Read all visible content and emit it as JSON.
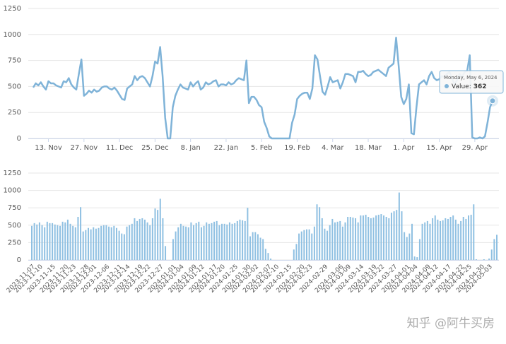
{
  "chart_data": [
    {
      "type": "line",
      "x": [
        "2023-11-07",
        "2023-11-08",
        "2023-11-09",
        "2023-11-10",
        "2023-11-11",
        "2023-11-12",
        "2023-11-13",
        "2023-11-14",
        "2023-11-15",
        "2023-11-16",
        "2023-11-17",
        "2023-11-18",
        "2023-11-19",
        "2023-11-20",
        "2023-11-21",
        "2023-11-22",
        "2023-11-23",
        "2023-11-24",
        "2023-11-25",
        "2023-11-26",
        "2023-11-27",
        "2023-11-28",
        "2023-11-29",
        "2023-11-30",
        "2023-12-01",
        "2023-12-02",
        "2023-12-03",
        "2023-12-04",
        "2023-12-05",
        "2023-12-06",
        "2023-12-07",
        "2023-12-08",
        "2023-12-09",
        "2023-12-10",
        "2023-12-11",
        "2023-12-12",
        "2023-12-13",
        "2023-12-14",
        "2023-12-15",
        "2023-12-16",
        "2023-12-17",
        "2023-12-18",
        "2023-12-19",
        "2023-12-20",
        "2023-12-21",
        "2023-12-22",
        "2023-12-23",
        "2023-12-24",
        "2023-12-25",
        "2023-12-26",
        "2023-12-27",
        "2023-12-28",
        "2023-12-29",
        "2023-12-30",
        "2023-12-31",
        "2024-01-01",
        "2024-01-02",
        "2024-01-03",
        "2024-01-04",
        "2024-01-05",
        "2024-01-06",
        "2024-01-07",
        "2024-01-08",
        "2024-01-09",
        "2024-01-10",
        "2024-01-11",
        "2024-01-12",
        "2024-01-13",
        "2024-01-14",
        "2024-01-15",
        "2024-01-16",
        "2024-01-17",
        "2024-01-18",
        "2024-01-19",
        "2024-01-20",
        "2024-01-21",
        "2024-01-22",
        "2024-01-23",
        "2024-01-24",
        "2024-01-25",
        "2024-01-26",
        "2024-01-27",
        "2024-01-28",
        "2024-01-29",
        "2024-01-30",
        "2024-01-31",
        "2024-02-01",
        "2024-02-02",
        "2024-02-03",
        "2024-02-04",
        "2024-02-05",
        "2024-02-06",
        "2024-02-07",
        "2024-02-08",
        "2024-02-09",
        "2024-02-10",
        "2024-02-11",
        "2024-02-12",
        "2024-02-13",
        "2024-02-14",
        "2024-02-15",
        "2024-02-16",
        "2024-02-17",
        "2024-02-18",
        "2024-02-19",
        "2024-02-20",
        "2024-02-21",
        "2024-02-22",
        "2024-02-23",
        "2024-02-24",
        "2024-02-25",
        "2024-02-26",
        "2024-02-27",
        "2024-02-28",
        "2024-02-29",
        "2024-03-01",
        "2024-03-02",
        "2024-03-03",
        "2024-03-04",
        "2024-03-05",
        "2024-03-06",
        "2024-03-07",
        "2024-03-08",
        "2024-03-09",
        "2024-03-10",
        "2024-03-11",
        "2024-03-12",
        "2024-03-13",
        "2024-03-14",
        "2024-03-15",
        "2024-03-16",
        "2024-03-17",
        "2024-03-18",
        "2024-03-19",
        "2024-03-20",
        "2024-03-21",
        "2024-03-22",
        "2024-03-23",
        "2024-03-24",
        "2024-03-25",
        "2024-03-26",
        "2024-03-27",
        "2024-03-28",
        "2024-03-29",
        "2024-03-30",
        "2024-03-31",
        "2024-04-01",
        "2024-04-02",
        "2024-04-03",
        "2024-04-04",
        "2024-04-05",
        "2024-04-06",
        "2024-04-07",
        "2024-04-08",
        "2024-04-09",
        "2024-04-10",
        "2024-04-11",
        "2024-04-12",
        "2024-04-13",
        "2024-04-14",
        "2024-04-15",
        "2024-04-16",
        "2024-04-17",
        "2024-04-18",
        "2024-04-19",
        "2024-04-20",
        "2024-04-21",
        "2024-04-22",
        "2024-04-23",
        "2024-04-24",
        "2024-04-25",
        "2024-04-26",
        "2024-04-27",
        "2024-04-28",
        "2024-04-29",
        "2024-04-30",
        "2024-05-01",
        "2024-05-02",
        "2024-05-03",
        "2024-05-04",
        "2024-05-05",
        "2024-05-06"
      ],
      "series": [
        {
          "name": "Value",
          "color": "#7fb3d8",
          "values": [
            490,
            530,
            510,
            540,
            500,
            470,
            550,
            530,
            530,
            510,
            500,
            490,
            550,
            540,
            580,
            520,
            490,
            470,
            620,
            760,
            410,
            430,
            460,
            440,
            470,
            450,
            460,
            490,
            500,
            500,
            480,
            470,
            490,
            460,
            420,
            380,
            370,
            480,
            500,
            520,
            600,
            560,
            590,
            600,
            580,
            540,
            500,
            600,
            740,
            720,
            880,
            600,
            200,
            0,
            0,
            300,
            410,
            470,
            520,
            490,
            480,
            470,
            540,
            500,
            530,
            550,
            470,
            490,
            540,
            520,
            530,
            550,
            560,
            500,
            520,
            520,
            510,
            540,
            520,
            530,
            560,
            580,
            570,
            560,
            750,
            340,
            400,
            400,
            370,
            320,
            300,
            160,
            100,
            20,
            0,
            0,
            0,
            0,
            0,
            0,
            0,
            0,
            150,
            230,
            380,
            410,
            430,
            440,
            440,
            380,
            480,
            800,
            760,
            600,
            450,
            420,
            500,
            590,
            540,
            550,
            560,
            480,
            540,
            620,
            620,
            610,
            600,
            540,
            640,
            640,
            650,
            620,
            600,
            610,
            640,
            650,
            660,
            640,
            620,
            600,
            680,
            700,
            720,
            970,
            700,
            400,
            330,
            380,
            520,
            50,
            40,
            300,
            520,
            540,
            560,
            520,
            600,
            640,
            580,
            560,
            570,
            600,
            590,
            620,
            640,
            580,
            520,
            560,
            620,
            590,
            640,
            650,
            800,
            10,
            0,
            0,
            10,
            0,
            20,
            150,
            300,
            362
          ]
        }
      ],
      "ylim": [
        0,
        1250
      ],
      "yticks": [
        0,
        250,
        500,
        750,
        1000,
        1250
      ],
      "grid": true,
      "xticks": [
        {
          "value": "2023-11-13",
          "label": "13. Nov"
        },
        {
          "value": "2023-11-27",
          "label": "27. Nov"
        },
        {
          "value": "2023-12-11",
          "label": "11. Dec"
        },
        {
          "value": "2023-12-25",
          "label": "25. Dec"
        },
        {
          "value": "2024-01-08",
          "label": "8. Jan"
        },
        {
          "value": "2024-01-22",
          "label": "22. Jan"
        },
        {
          "value": "2024-02-05",
          "label": "5. Feb"
        },
        {
          "value": "2024-02-19",
          "label": "19. Feb"
        },
        {
          "value": "2024-03-04",
          "label": "4. Mar"
        },
        {
          "value": "2024-03-18",
          "label": "18. Mar"
        },
        {
          "value": "2024-04-01",
          "label": "1. Apr"
        },
        {
          "value": "2024-04-15",
          "label": "15. Apr"
        },
        {
          "value": "2024-04-29",
          "label": "29. Apr"
        }
      ],
      "tooltip": {
        "title": "Monday, May 6, 2024",
        "label": "Value:",
        "value": 362
      }
    },
    {
      "type": "bar",
      "x": [
        "2023-11-07",
        "2023-11-08",
        "2023-11-09",
        "2023-11-10",
        "2023-11-11",
        "2023-11-12",
        "2023-11-13",
        "2023-11-14",
        "2023-11-15",
        "2023-11-16",
        "2023-11-17",
        "2023-11-18",
        "2023-11-19",
        "2023-11-20",
        "2023-11-21",
        "2023-11-22",
        "2023-11-23",
        "2023-11-24",
        "2023-11-25",
        "2023-11-26",
        "2023-11-27",
        "2023-11-28",
        "2023-11-29",
        "2023-11-30",
        "2023-12-01",
        "2023-12-02",
        "2023-12-03",
        "2023-12-04",
        "2023-12-05",
        "2023-12-06",
        "2023-12-07",
        "2023-12-08",
        "2023-12-09",
        "2023-12-10",
        "2023-12-11",
        "2023-12-12",
        "2023-12-13",
        "2023-12-14",
        "2023-12-15",
        "2023-12-16",
        "2023-12-17",
        "2023-12-18",
        "2023-12-19",
        "2023-12-20",
        "2023-12-21",
        "2023-12-22",
        "2023-12-23",
        "2023-12-24",
        "2023-12-25",
        "2023-12-26",
        "2023-12-27",
        "2023-12-28",
        "2023-12-29",
        "2023-12-30",
        "2023-12-31",
        "2024-01-01",
        "2024-01-02",
        "2024-01-03",
        "2024-01-04",
        "2024-01-05",
        "2024-01-06",
        "2024-01-07",
        "2024-01-08",
        "2024-01-09",
        "2024-01-10",
        "2024-01-11",
        "2024-01-12",
        "2024-01-13",
        "2024-01-14",
        "2024-01-15",
        "2024-01-16",
        "2024-01-17",
        "2024-01-18",
        "2024-01-19",
        "2024-01-20",
        "2024-01-21",
        "2024-01-22",
        "2024-01-23",
        "2024-01-24",
        "2024-01-25",
        "2024-01-26",
        "2024-01-27",
        "2024-01-28",
        "2024-01-29",
        "2024-01-30",
        "2024-01-31",
        "2024-02-01",
        "2024-02-02",
        "2024-02-03",
        "2024-02-04",
        "2024-02-05",
        "2024-02-06",
        "2024-02-07",
        "2024-02-08",
        "2024-02-09",
        "2024-02-10",
        "2024-02-11",
        "2024-02-12",
        "2024-02-13",
        "2024-02-14",
        "2024-02-15",
        "2024-02-16",
        "2024-02-17",
        "2024-02-18",
        "2024-02-19",
        "2024-02-20",
        "2024-02-21",
        "2024-02-22",
        "2024-02-23",
        "2024-02-24",
        "2024-02-25",
        "2024-02-26",
        "2024-02-27",
        "2024-02-28",
        "2024-02-29",
        "2024-03-01",
        "2024-03-02",
        "2024-03-03",
        "2024-03-04",
        "2024-03-05",
        "2024-03-06",
        "2024-03-07",
        "2024-03-08",
        "2024-03-09",
        "2024-03-10",
        "2024-03-11",
        "2024-03-12",
        "2024-03-13",
        "2024-03-14",
        "2024-03-15",
        "2024-03-16",
        "2024-03-17",
        "2024-03-18",
        "2024-03-19",
        "2024-03-20",
        "2024-03-21",
        "2024-03-22",
        "2024-03-23",
        "2024-03-24",
        "2024-03-25",
        "2024-03-26",
        "2024-03-27",
        "2024-03-28",
        "2024-03-29",
        "2024-03-30",
        "2024-03-31",
        "2024-04-01",
        "2024-04-02",
        "2024-04-03",
        "2024-04-04",
        "2024-04-05",
        "2024-04-06",
        "2024-04-07",
        "2024-04-08",
        "2024-04-09",
        "2024-04-10",
        "2024-04-11",
        "2024-04-12",
        "2024-04-13",
        "2024-04-14",
        "2024-04-15",
        "2024-04-16",
        "2024-04-17",
        "2024-04-18",
        "2024-04-19",
        "2024-04-20",
        "2024-04-21",
        "2024-04-22",
        "2024-04-23",
        "2024-04-24",
        "2024-04-25",
        "2024-04-26",
        "2024-04-27",
        "2024-04-28",
        "2024-04-29",
        "2024-04-30",
        "2024-05-01",
        "2024-05-02",
        "2024-05-03",
        "2024-05-04",
        "2024-05-05",
        "2024-05-06"
      ],
      "color": "#8fc0e2",
      "values": [
        490,
        530,
        510,
        540,
        500,
        470,
        550,
        530,
        530,
        510,
        500,
        490,
        550,
        540,
        580,
        520,
        490,
        470,
        620,
        760,
        410,
        430,
        460,
        440,
        470,
        450,
        460,
        490,
        500,
        500,
        480,
        470,
        490,
        460,
        420,
        380,
        370,
        480,
        500,
        520,
        600,
        560,
        590,
        600,
        580,
        540,
        500,
        600,
        740,
        720,
        880,
        600,
        200,
        0,
        0,
        300,
        410,
        470,
        520,
        490,
        480,
        470,
        540,
        500,
        530,
        550,
        470,
        490,
        540,
        520,
        530,
        550,
        560,
        500,
        520,
        520,
        510,
        540,
        520,
        530,
        560,
        580,
        570,
        560,
        750,
        340,
        400,
        400,
        370,
        320,
        300,
        160,
        100,
        20,
        0,
        0,
        0,
        0,
        0,
        0,
        0,
        0,
        150,
        230,
        380,
        410,
        430,
        440,
        440,
        380,
        480,
        800,
        760,
        600,
        450,
        420,
        500,
        590,
        540,
        550,
        560,
        480,
        540,
        620,
        620,
        610,
        600,
        540,
        640,
        640,
        650,
        620,
        600,
        610,
        640,
        650,
        660,
        640,
        620,
        600,
        680,
        700,
        720,
        970,
        700,
        400,
        330,
        380,
        520,
        50,
        40,
        300,
        520,
        540,
        560,
        520,
        600,
        640,
        580,
        560,
        570,
        600,
        590,
        620,
        640,
        580,
        520,
        560,
        620,
        590,
        640,
        650,
        800,
        10,
        0,
        0,
        10,
        0,
        20,
        150,
        300,
        362
      ],
      "ylim": [
        0,
        1250
      ],
      "yticks": [
        0,
        250,
        500,
        750,
        1000,
        1250
      ],
      "grid": true,
      "xticks": [
        "2023-11-07",
        "2023-11-10",
        "2023-11-15",
        "2023-11-20",
        "2023-11-23",
        "2023-11-28",
        "2023-12-01",
        "2023-12-06",
        "2023-12-11",
        "2023-12-14",
        "2023-12-19",
        "2023-12-22",
        "2023-12-27",
        "2024-01-01",
        "2024-01-04",
        "2024-01-09",
        "2024-01-12",
        "2024-01-17",
        "2024-01-20",
        "2024-01-25",
        "2024-01-30",
        "2024-02-02",
        "2024-02-07",
        "2024-02-10",
        "2024-02-15",
        "2024-02-20",
        "2024-02-23",
        "2024-02-29",
        "2024-03-06",
        "2024-03-09",
        "2024-03-14",
        "2024-03-19",
        "2024-03-22",
        "2024-03-27",
        "2024-04-01",
        "2024-04-04",
        "2024-04-09",
        "2024-04-12",
        "2024-04-17",
        "2024-04-22",
        "2024-04-25",
        "2024-04-30",
        "2024-05-03"
      ],
      "watermark": "知乎 @阿牛买房"
    }
  ]
}
